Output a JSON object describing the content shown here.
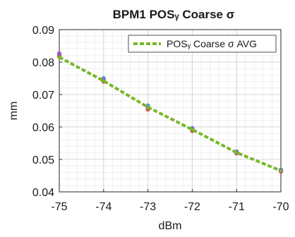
{
  "chart_data": {
    "type": "line",
    "title": "BPM1 POSᵧ Coarse σ",
    "xlabel": "dBm",
    "ylabel": "mm",
    "xlim": [
      -75,
      -70
    ],
    "ylim": [
      0.04,
      0.09
    ],
    "xticks": [
      -75,
      -74,
      -73,
      -72,
      -71,
      -70
    ],
    "yticks": [
      0.04,
      0.05,
      0.06,
      0.07,
      0.08,
      0.09
    ],
    "xtick_labels": [
      "-75",
      "-74",
      "-73",
      "-72",
      "-71",
      "-70"
    ],
    "ytick_labels": [
      "0.04",
      "0.05",
      "0.06",
      "0.07",
      "0.08",
      "0.09"
    ],
    "grid": true,
    "minor_grid": true,
    "legend_position": "top-right",
    "x": [
      -75,
      -74,
      -73,
      -72,
      -71,
      -70
    ],
    "series": [
      {
        "name": "POSᵧ Coarse σ AVG",
        "values": [
          0.0815,
          0.0742,
          0.0661,
          0.0592,
          0.0521,
          0.0465
        ],
        "color": "#77b82a",
        "style": "dashed",
        "in_legend": true
      },
      {
        "values": [
          0.0822,
          0.075,
          0.0666,
          0.0596,
          0.0524,
          0.0468
        ],
        "color": "#3b8fd6",
        "style": "markers",
        "in_legend": false
      },
      {
        "values": [
          0.0817,
          0.074,
          0.0654,
          0.0588,
          0.0519,
          0.0463
        ],
        "color": "#d9472b",
        "style": "markers",
        "in_legend": false
      },
      {
        "values": [
          0.0826,
          0.0745,
          0.066,
          0.0593,
          0.0522,
          0.0466
        ],
        "color": "#9c4fc4",
        "style": "markers",
        "in_legend": false
      }
    ]
  }
}
